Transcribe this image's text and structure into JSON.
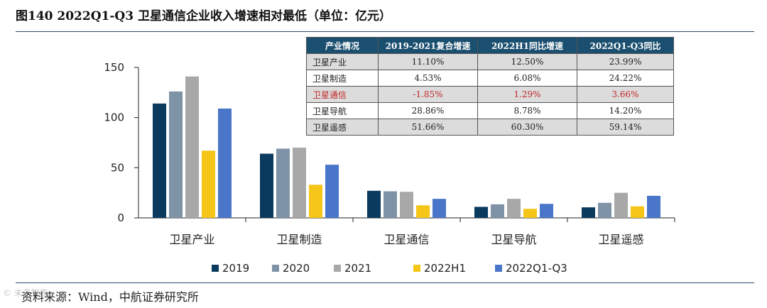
{
  "title": "图140 2022Q1-Q3 卫星通信企业收入增速相对最低（单位：亿元）",
  "source": "资料来源：Wind，中航证券研究所",
  "watermark": "© 未来智库",
  "colors": {
    "2019": "#0b3a5f",
    "2020": "#7f93a7",
    "2021": "#a8a8a8",
    "2022H1": "#f5c518",
    "2022Q1-Q3": "#4a76c9"
  },
  "chart_data": {
    "type": "bar",
    "title": "2022Q1-Q3 卫星通信企业收入增速相对最低",
    "ylabel": "亿元",
    "xlabel": "",
    "ylim": [
      0,
      150
    ],
    "yticks": [
      0,
      50,
      100,
      150
    ],
    "categories": [
      "卫星产业",
      "卫星制造",
      "卫星通信",
      "卫星导航",
      "卫星遥感"
    ],
    "series": [
      {
        "name": "2019",
        "values": [
          114,
          64,
          27,
          11,
          10.5
        ]
      },
      {
        "name": "2020",
        "values": [
          126,
          69,
          26.5,
          13.5,
          15
        ]
      },
      {
        "name": "2021",
        "values": [
          141,
          70,
          26,
          19,
          25
        ]
      },
      {
        "name": "2022H1",
        "values": [
          67,
          33,
          12.5,
          9,
          11.5
        ]
      },
      {
        "name": "2022Q1-Q3",
        "values": [
          109,
          53,
          19,
          14,
          22
        ]
      }
    ],
    "legend_position": "bottom"
  },
  "table": {
    "headers": [
      "产业情况",
      "2019-2021复合增速",
      "2022H1同比增速",
      "2022Q1-Q3同比"
    ],
    "rows": [
      {
        "cells": [
          "卫星产业",
          "11.10%",
          "12.50%",
          "23.99%"
        ],
        "highlight": false
      },
      {
        "cells": [
          "卫星制造",
          "4.53%",
          "6.08%",
          "24.22%"
        ],
        "highlight": false
      },
      {
        "cells": [
          "卫星通信",
          "-1.85%",
          "1.29%",
          "3.66%"
        ],
        "highlight": true
      },
      {
        "cells": [
          "卫星导航",
          "28.86%",
          "8.78%",
          "14.20%"
        ],
        "highlight": false
      },
      {
        "cells": [
          "卫星遥感",
          "51.66%",
          "60.30%",
          "59.14%"
        ],
        "highlight": false
      }
    ]
  }
}
